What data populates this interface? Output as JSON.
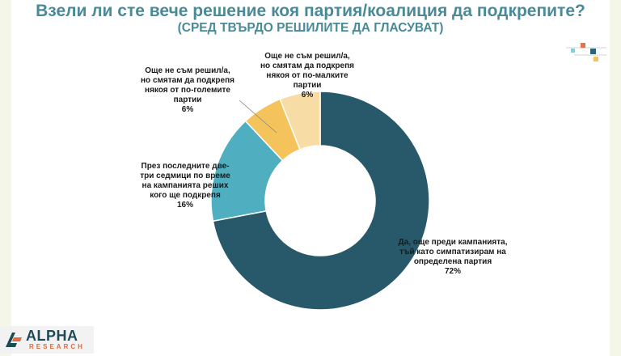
{
  "header": {
    "title": "Взели ли сте вече решение коя партия/коалиция да подкрепите?",
    "subtitle": "(СРЕД ТВЪРДО РЕШИЛИТЕ ДА ГЛАСУВАТ)"
  },
  "chart_data": {
    "type": "pie",
    "style": "donut",
    "title": "Взели ли сте вече решение коя партия/коалиция да подкрепите?",
    "subtitle": "(СРЕД ТВЪРДО РЕШИЛИТЕ ДА ГЛАСУВАТ)",
    "categories": [
      "Да, още преди кампанията, тъй като симпатизирам на определена партия",
      "През последните две-три седмици по време на кампанията реших кого ще подкрепя",
      "Още не съм решил/а, но смятам да подкрепя някоя от по-големите партии",
      "Още не съм решил/а, но смятам да подкрепя някоя от по-малките партии"
    ],
    "values": [
      72,
      16,
      6,
      6
    ],
    "value_labels": [
      "72%",
      "16%",
      "6%",
      "6%"
    ],
    "colors": [
      "#27596a",
      "#4faebf",
      "#f4c35b",
      "#f8dca5"
    ]
  },
  "labels": {
    "yes": {
      "lines": [
        "Да, още преди кампанията,",
        "тъй като симпатизирам на",
        "определена партия"
      ],
      "pct": "72%"
    },
    "recent": {
      "lines": [
        "През последните две-",
        "три седмици по време",
        "на кампанията реших",
        "кого ще подкрепя"
      ],
      "pct": "16%"
    },
    "bigger": {
      "lines": [
        "Още не съм решил/а,",
        "но смятам да подкрепя",
        "някоя от по-големите",
        "партии"
      ],
      "pct": "6%"
    },
    "smaller": {
      "lines": [
        "Още не съм решил/а,",
        "но смятам да подкрепя",
        "някоя от по-малките",
        "партии"
      ],
      "pct": "6%"
    }
  },
  "logo": {
    "name": "ALPHA",
    "sub": "RESEARCH"
  },
  "deco_colors": [
    "#e8734a",
    "#2a6572",
    "#8ec9d4",
    "#f4c35b"
  ]
}
